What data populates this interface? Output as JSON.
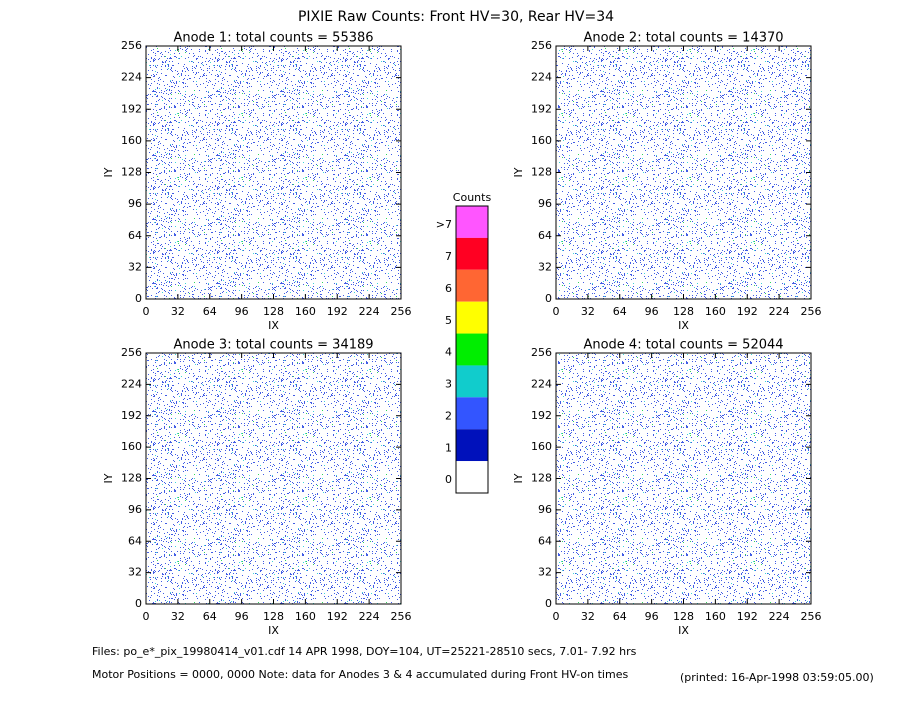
{
  "title": "PIXIE Raw Counts:  Front HV=30, Rear HV=34",
  "chart_data": [
    {
      "type": "heatmap",
      "title": "Anode 1: total counts = 55386",
      "xlabel": "IX",
      "ylabel": "IY",
      "xlim": [
        0,
        256
      ],
      "ylim": [
        0,
        256
      ],
      "xticks": [
        0,
        32,
        64,
        96,
        128,
        160,
        192,
        224,
        256
      ],
      "yticks": [
        0,
        32,
        64,
        96,
        128,
        160,
        192,
        224,
        256
      ]
    },
    {
      "type": "heatmap",
      "title": "Anode 2: total counts = 14370",
      "xlabel": "IX",
      "ylabel": "IY",
      "xlim": [
        0,
        256
      ],
      "ylim": [
        0,
        256
      ],
      "xticks": [
        0,
        32,
        64,
        96,
        128,
        160,
        192,
        224,
        256
      ],
      "yticks": [
        0,
        32,
        64,
        96,
        128,
        160,
        192,
        224,
        256
      ]
    },
    {
      "type": "heatmap",
      "title": "Anode 3: total counts = 34189",
      "xlabel": "IX",
      "ylabel": "IY",
      "xlim": [
        0,
        256
      ],
      "ylim": [
        0,
        256
      ],
      "xticks": [
        0,
        32,
        64,
        96,
        128,
        160,
        192,
        224,
        256
      ],
      "yticks": [
        0,
        32,
        64,
        96,
        128,
        160,
        192,
        224,
        256
      ]
    },
    {
      "type": "heatmap",
      "title": "Anode 4: total counts = 52044",
      "xlabel": "IX",
      "ylabel": "IY",
      "xlim": [
        0,
        256
      ],
      "ylim": [
        0,
        256
      ],
      "xticks": [
        0,
        32,
        64,
        96,
        128,
        160,
        192,
        224,
        256
      ],
      "yticks": [
        0,
        32,
        64,
        96,
        128,
        160,
        192,
        224,
        256
      ]
    }
  ],
  "colorbar": {
    "title": "Counts",
    "categories": [
      ">7",
      "7",
      "6",
      "5",
      "4",
      "3",
      "2",
      "1",
      "0"
    ],
    "colors": [
      "#ff55ff",
      "#ff0022",
      "#ff6633",
      "#ffff00",
      "#00ee00",
      "#11cccc",
      "#3355ff",
      "#0011bb",
      "#ffffff"
    ]
  },
  "footer": {
    "files": "Files: po_e*_pix_19980414_v01.cdf    14 APR 1998, DOY=104, UT=25221-28510 secs,  7.01- 7.92 hrs",
    "motor": "Motor Positions = 0000, 0000    Note: data for Anodes 3 & 4 accumulated during Front HV-on times",
    "printed": "(printed: 16-Apr-1998 03:59:05.00)"
  }
}
